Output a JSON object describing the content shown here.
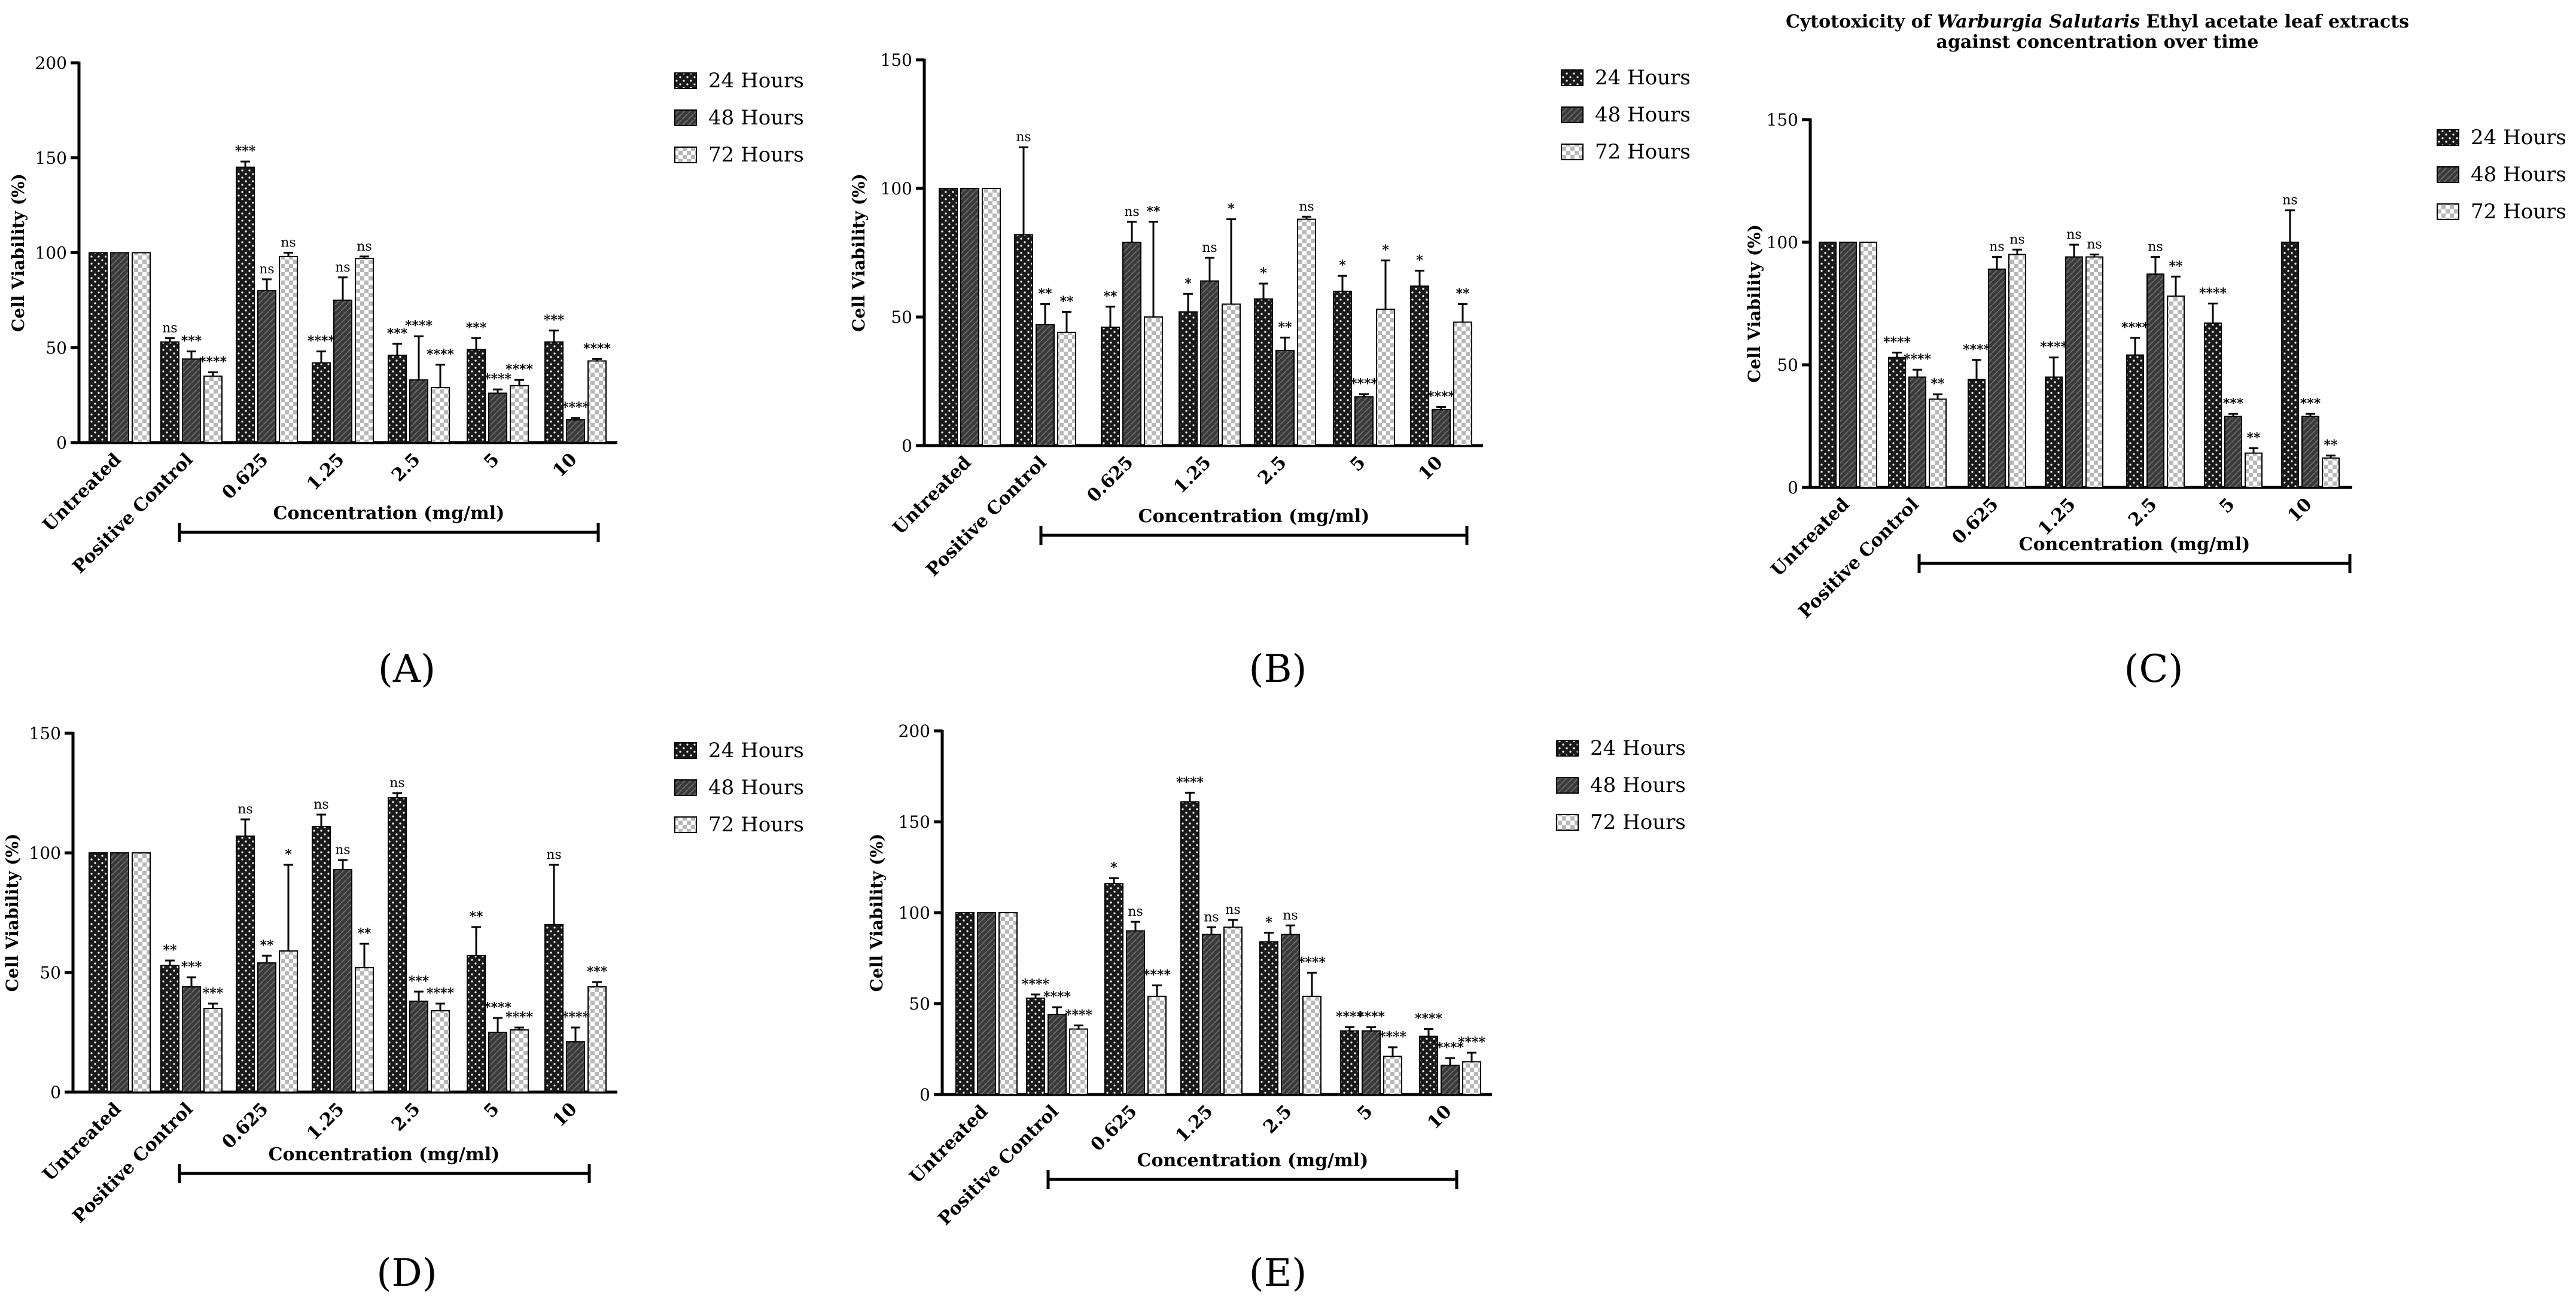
{
  "series_names": [
    "24 Hours",
    "48 Hours",
    "72 Hours"
  ],
  "categories": [
    "Untreated",
    "Positive Control",
    "0.625",
    "1.25",
    "2.5",
    "5",
    "10"
  ],
  "x_group_label": "Concentration (mg/ml)",
  "y_label": "Cell Viability (%)",
  "chart_data": [
    {
      "panel": "A",
      "panel_label": "(A)",
      "title": "",
      "type": "bar",
      "ylim": [
        0,
        200
      ],
      "yticks": [
        0,
        50,
        100,
        150,
        200
      ],
      "categories": [
        "Untreated",
        "Positive Control",
        "0.625",
        "1.25",
        "2.5",
        "5",
        "10"
      ],
      "xlabel": "Concentration (mg/ml)",
      "ylabel": "Cell Viability (%)",
      "series": [
        {
          "name": "24 Hours",
          "values": [
            100,
            53,
            145,
            42,
            46,
            49,
            53
          ],
          "errors": [
            0,
            2,
            3,
            6,
            6,
            6,
            6
          ],
          "sig": [
            "",
            "ns",
            "***",
            "****",
            "***",
            "***",
            "***"
          ]
        },
        {
          "name": "48 Hours",
          "values": [
            100,
            44,
            80,
            75,
            33,
            26,
            12
          ],
          "errors": [
            0,
            4,
            6,
            12,
            23,
            2,
            1
          ],
          "sig": [
            "",
            "***",
            "ns",
            "ns",
            "****",
            "****",
            "****"
          ]
        },
        {
          "name": "72 Hours",
          "values": [
            100,
            35,
            98,
            97,
            29,
            30,
            43
          ],
          "errors": [
            0,
            2,
            2,
            1,
            12,
            3,
            1
          ],
          "sig": [
            "",
            "****",
            "ns",
            "ns",
            "****",
            "****",
            "****"
          ]
        }
      ]
    },
    {
      "panel": "B",
      "panel_label": "(B)",
      "title": "",
      "type": "bar",
      "ylim": [
        0,
        150
      ],
      "yticks": [
        0,
        50,
        100,
        150
      ],
      "categories": [
        "Untreated",
        "Positive Control",
        "0.625",
        "1.25",
        "2.5",
        "5",
        "10"
      ],
      "xlabel": "Concentration (mg/ml)",
      "ylabel": "Cell Viability (%)",
      "series": [
        {
          "name": "24 Hours",
          "values": [
            100,
            82,
            46,
            52,
            57,
            60,
            62
          ],
          "errors": [
            0,
            34,
            8,
            7,
            6,
            6,
            6
          ],
          "sig": [
            "",
            "ns",
            "**",
            "*",
            "*",
            "*",
            "*"
          ]
        },
        {
          "name": "48 Hours",
          "values": [
            100,
            47,
            79,
            64,
            37,
            19,
            14
          ],
          "errors": [
            0,
            8,
            8,
            9,
            5,
            1,
            1
          ],
          "sig": [
            "",
            "**",
            "ns",
            "ns",
            "**",
            "****",
            "****"
          ]
        },
        {
          "name": "72 Hours",
          "values": [
            100,
            44,
            50,
            55,
            88,
            53,
            48
          ],
          "errors": [
            0,
            8,
            37,
            33,
            1,
            19,
            7
          ],
          "sig": [
            "",
            "**",
            "**",
            "*",
            "ns",
            "*",
            "**"
          ]
        }
      ]
    },
    {
      "panel": "C",
      "panel_label": "(C)",
      "title": "Cytotoxicity of Warburgia Salutaris Ethyl acetate leaf extracts against concentration over time",
      "title_line1_pre": "Cytotoxicity of ",
      "title_line1_italic": "Warburgia Salutaris",
      "title_line1_post": " Ethyl acetate leaf extracts",
      "title_line2": "against concentration over time",
      "type": "bar",
      "ylim": [
        0,
        150
      ],
      "yticks": [
        0,
        50,
        100,
        150
      ],
      "categories": [
        "Untreated",
        "Positive Control",
        "0.625",
        "1.25",
        "2.5",
        "5",
        "10"
      ],
      "xlabel": "Concentration (mg/ml)",
      "ylabel": "Cell Viability (%)",
      "series": [
        {
          "name": "24 Hours",
          "values": [
            100,
            53,
            44,
            45,
            54,
            67,
            100
          ],
          "errors": [
            0,
            2,
            8,
            8,
            7,
            8,
            13
          ],
          "sig": [
            "",
            "****",
            "****",
            "****",
            "****",
            "****",
            "ns"
          ]
        },
        {
          "name": "48 Hours",
          "values": [
            100,
            45,
            89,
            94,
            87,
            29,
            29
          ],
          "errors": [
            0,
            3,
            5,
            5,
            7,
            1,
            1
          ],
          "sig": [
            "",
            "****",
            "ns",
            "ns",
            "ns",
            "***",
            "***"
          ]
        },
        {
          "name": "72 Hours",
          "values": [
            100,
            36,
            95,
            94,
            78,
            14,
            12
          ],
          "errors": [
            0,
            2,
            2,
            1,
            8,
            2,
            1
          ],
          "sig": [
            "",
            "**",
            "ns",
            "ns",
            "**",
            "**",
            "**"
          ]
        }
      ]
    },
    {
      "panel": "D",
      "panel_label": "(D)",
      "title": "",
      "type": "bar",
      "ylim": [
        0,
        150
      ],
      "yticks": [
        0,
        50,
        100,
        150
      ],
      "categories": [
        "Untreated",
        "Positive Control",
        "0.625",
        "1.25",
        "2.5",
        "5",
        "10"
      ],
      "xlabel": "Concentration (mg/ml)",
      "ylabel": "Cell Viability (%)",
      "series": [
        {
          "name": "24 Hours",
          "values": [
            100,
            53,
            107,
            111,
            123,
            57,
            70
          ],
          "errors": [
            0,
            2,
            7,
            5,
            2,
            12,
            25
          ],
          "sig": [
            "",
            "**",
            "ns",
            "ns",
            "ns",
            "**",
            "ns"
          ]
        },
        {
          "name": "48 Hours",
          "values": [
            100,
            44,
            54,
            93,
            38,
            25,
            21
          ],
          "errors": [
            0,
            4,
            3,
            4,
            4,
            6,
            6
          ],
          "sig": [
            "",
            "***",
            "**",
            "ns",
            "***",
            "****",
            "****"
          ]
        },
        {
          "name": "72 Hours",
          "values": [
            100,
            35,
            59,
            52,
            34,
            26,
            44
          ],
          "errors": [
            0,
            2,
            36,
            10,
            3,
            1,
            2
          ],
          "sig": [
            "",
            "***",
            "*",
            "**",
            "****",
            "****",
            "***"
          ]
        }
      ]
    },
    {
      "panel": "E",
      "panel_label": "(E)",
      "title": "",
      "type": "bar",
      "ylim": [
        0,
        200
      ],
      "yticks": [
        0,
        50,
        100,
        150,
        200
      ],
      "categories": [
        "Untreated",
        "Positive Control",
        "0.625",
        "1.25",
        "2.5",
        "5",
        "10"
      ],
      "xlabel": "Concentration (mg/ml)",
      "ylabel": "Cell Viability (%)",
      "series": [
        {
          "name": "24 Hours",
          "values": [
            100,
            53,
            116,
            161,
            84,
            35,
            32
          ],
          "errors": [
            0,
            2,
            3,
            5,
            5,
            2,
            4
          ],
          "sig": [
            "",
            "****",
            "*",
            "****",
            "*",
            "****",
            "****"
          ]
        },
        {
          "name": "48 Hours",
          "values": [
            100,
            44,
            90,
            88,
            88,
            35,
            16
          ],
          "errors": [
            0,
            4,
            5,
            4,
            5,
            2,
            4
          ],
          "sig": [
            "",
            "****",
            "ns",
            "ns",
            "ns",
            "****",
            "****"
          ]
        },
        {
          "name": "72 Hours",
          "values": [
            100,
            36,
            54,
            92,
            54,
            21,
            18
          ],
          "errors": [
            0,
            2,
            6,
            4,
            13,
            5,
            5
          ],
          "sig": [
            "",
            "****",
            "****",
            "ns",
            "****",
            "****",
            "****"
          ]
        }
      ]
    }
  ]
}
